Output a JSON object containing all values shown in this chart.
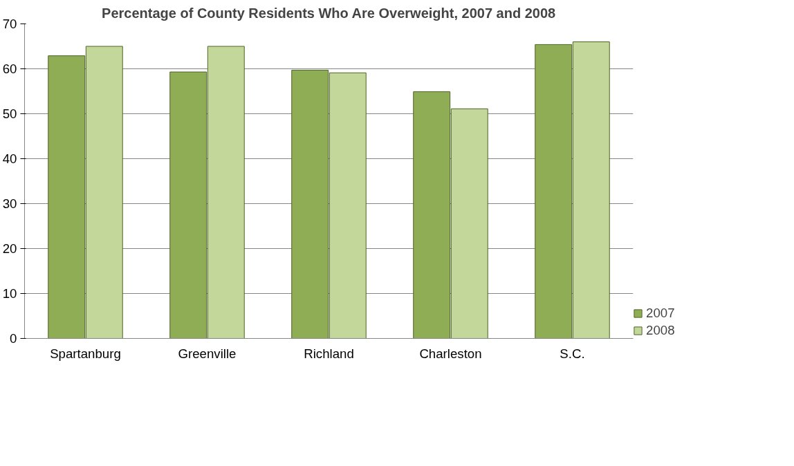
{
  "chart_data": {
    "type": "bar",
    "title": "Percentage of County Residents Who Are Overweight, 2007 and 2008",
    "categories": [
      "Spartanburg",
      "Greenville",
      "Richland",
      "Charleston",
      "S.C."
    ],
    "series": [
      {
        "name": "2007",
        "color": "#8fad55",
        "values": [
          62.9,
          59.3,
          59.7,
          54.9,
          65.4
        ]
      },
      {
        "name": "2008",
        "color": "#c4d79b",
        "values": [
          65.0,
          65.0,
          59.1,
          51.1,
          66.0
        ]
      }
    ],
    "ylim": [
      0,
      70
    ],
    "yticks": [
      0,
      10,
      20,
      30,
      40,
      50,
      60,
      70
    ],
    "grid": "y",
    "legend": "right"
  }
}
